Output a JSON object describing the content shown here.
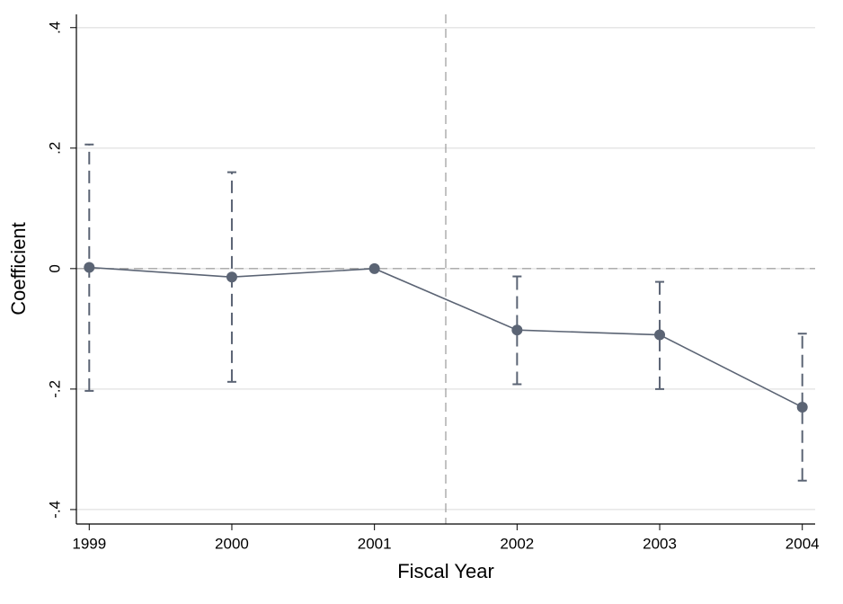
{
  "chart_data": {
    "type": "coefplot",
    "x_label": "Fiscal Year",
    "y_label": "Coefficient",
    "x": [
      1999,
      2000,
      2001,
      2002,
      2003,
      2004
    ],
    "series": [
      {
        "color": "#5b6474",
        "values": [
          0.002,
          -0.014,
          0,
          -0.102,
          -0.11,
          -0.23
        ],
        "ci_lower": [
          -0.203,
          -0.188,
          null,
          -0.192,
          -0.2,
          -0.352
        ],
        "ci_upper": [
          0.206,
          0.16,
          null,
          -0.013,
          -0.022,
          -0.108
        ]
      }
    ],
    "xlim": [
      1998.91,
      2004.09
    ],
    "xticks": [
      1999,
      2000,
      2001,
      2002,
      2003,
      2004
    ],
    "ylim": [
      -0.424,
      0.422
    ],
    "yticks": [
      {
        "value": -0.4,
        "label": "-.4"
      },
      {
        "value": -0.2,
        "label": "-.2"
      },
      0,
      {
        "value": 0.2,
        "label": ".2"
      },
      {
        "value": 0.4,
        "label": ".4"
      }
    ],
    "grid": true,
    "xline": 2001.5,
    "yline": 0
  }
}
